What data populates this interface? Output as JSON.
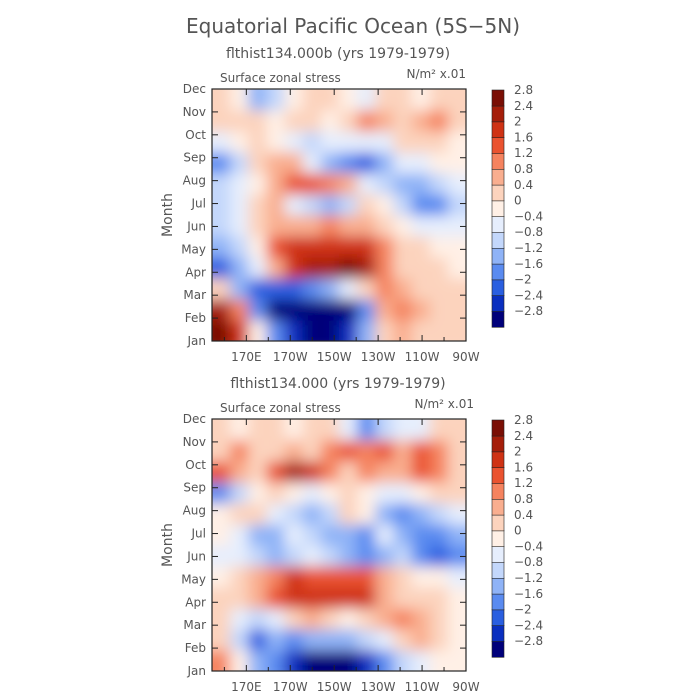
{
  "figure": {
    "title": "Equatorial Pacific Ocean (5S−5N)"
  },
  "colorbar": {
    "colors": [
      "#00007a",
      "#0a2fbf",
      "#2a5fe0",
      "#5a8bf0",
      "#8fb3f7",
      "#c3d7fb",
      "#e6eefd",
      "#fff0e6",
      "#fcd3bd",
      "#f9ae8f",
      "#f5835f",
      "#ea5330",
      "#cf3214",
      "#a51e0a",
      "#7a0f05"
    ],
    "labels": [
      "-2.8",
      "-2.4",
      "-2",
      "-1.6",
      "-1.2",
      "-0.8",
      "-0.4",
      "0",
      "0.4",
      "0.8",
      "1.2",
      "1.6",
      "2",
      "2.4",
      "2.8"
    ]
  },
  "chart_data": [
    {
      "type": "heatmap",
      "title": "flthist134.000b (yrs 1979-1979)",
      "variable": "Surface zonal stress",
      "units": "N/m² x.01",
      "ylabel": "Month",
      "xlabel": "",
      "xticks": [
        "170E",
        "170W",
        "150W",
        "130W",
        "110W",
        "90W"
      ],
      "yticks": [
        "Jan",
        "Feb",
        "Mar",
        "Apr",
        "May",
        "Jun",
        "Jul",
        "Aug",
        "Sep",
        "Oct",
        "Nov",
        "Dec"
      ],
      "value_range": [
        -3.2,
        3.2
      ],
      "grid_cols": 14,
      "grid_rows": 12,
      "values": [
        [
          3.0,
          2.2,
          0.0,
          -1.5,
          -2.4,
          -3.0,
          -3.0,
          -2.4,
          -1.2,
          0.4,
          0.8,
          0.6,
          0.4,
          0.4
        ],
        [
          2.6,
          1.2,
          -1.8,
          -3.2,
          -3.2,
          -3.2,
          -3.0,
          -2.8,
          -1.6,
          0.8,
          1.2,
          0.8,
          0.4,
          0.4
        ],
        [
          0.4,
          -1.2,
          -2.2,
          -2.2,
          -2.0,
          -1.6,
          -1.2,
          -0.4,
          0.4,
          1.2,
          1.0,
          0.6,
          0.4,
          0.4
        ],
        [
          -2.0,
          -1.4,
          -0.4,
          1.0,
          2.0,
          2.4,
          2.6,
          2.8,
          2.6,
          1.4,
          0.4,
          0.4,
          0.4,
          0.2
        ],
        [
          -1.4,
          -0.8,
          0.0,
          1.6,
          2.2,
          2.2,
          2.0,
          2.2,
          2.2,
          1.2,
          0.4,
          0.4,
          0.2,
          0.0
        ],
        [
          -1.0,
          -0.6,
          0.4,
          1.0,
          0.8,
          1.0,
          1.2,
          0.8,
          0.8,
          0.4,
          0.0,
          -0.6,
          -0.6,
          -0.4
        ],
        [
          -0.8,
          -0.4,
          0.4,
          0.8,
          -0.4,
          -1.0,
          -1.2,
          -0.8,
          0.4,
          0.0,
          -0.8,
          -1.6,
          -1.6,
          -0.8
        ],
        [
          -0.8,
          -0.4,
          0.0,
          0.8,
          1.6,
          1.8,
          1.4,
          0.8,
          -0.4,
          -1.0,
          -1.2,
          -1.2,
          -0.8,
          -0.4
        ],
        [
          -1.6,
          -1.0,
          0.4,
          0.8,
          0.8,
          -0.4,
          -1.2,
          -1.8,
          -2.0,
          -1.4,
          -0.6,
          -0.4,
          0.0,
          0.0
        ],
        [
          -0.4,
          0.0,
          0.4,
          0.0,
          -0.4,
          -0.8,
          -0.6,
          -0.4,
          -0.6,
          -0.4,
          0.4,
          0.4,
          0.4,
          0.2
        ],
        [
          0.4,
          0.4,
          0.4,
          0.0,
          0.4,
          0.4,
          0.0,
          0.4,
          1.2,
          0.8,
          0.4,
          0.8,
          1.2,
          0.4
        ],
        [
          0.4,
          0.0,
          -1.2,
          -0.8,
          0.0,
          0.4,
          0.4,
          0.0,
          -0.4,
          0.4,
          0.4,
          0.0,
          0.4,
          0.4
        ]
      ]
    },
    {
      "type": "heatmap",
      "title": "flthist134.000 (yrs 1979-1979)",
      "variable": "Surface zonal stress",
      "units": "N/m² x.01",
      "ylabel": "Month",
      "xlabel": "",
      "xticks": [
        "170E",
        "170W",
        "150W",
        "130W",
        "110W",
        "90W"
      ],
      "yticks": [
        "Jan",
        "Feb",
        "Mar",
        "Apr",
        "May",
        "Jun",
        "Jul",
        "Aug",
        "Sep",
        "Oct",
        "Nov",
        "Dec"
      ],
      "value_range": [
        -3.2,
        3.2
      ],
      "grid_cols": 14,
      "grid_rows": 12,
      "values": [
        [
          1.2,
          0.0,
          -1.2,
          -1.6,
          -2.6,
          -2.8,
          -3.0,
          -2.8,
          -2.4,
          -1.6,
          -0.8,
          -0.4,
          0.0,
          0.0
        ],
        [
          0.4,
          -0.8,
          -2.0,
          -1.2,
          -1.6,
          -1.4,
          -1.2,
          -1.2,
          -0.8,
          -0.4,
          0.4,
          0.8,
          0.4,
          0.0
        ],
        [
          0.4,
          -0.4,
          -1.0,
          -0.4,
          0.4,
          0.8,
          0.4,
          0.0,
          0.4,
          0.8,
          1.2,
          1.0,
          0.4,
          0.0
        ],
        [
          0.4,
          0.4,
          0.8,
          1.6,
          2.0,
          2.2,
          2.0,
          2.2,
          2.0,
          0.8,
          0.4,
          0.4,
          0.4,
          0.0
        ],
        [
          0.0,
          0.4,
          0.8,
          1.4,
          2.0,
          1.8,
          1.6,
          1.8,
          1.8,
          0.8,
          0.4,
          0.0,
          0.0,
          -0.4
        ],
        [
          -0.4,
          -0.4,
          -0.8,
          -1.2,
          -0.8,
          -0.4,
          -0.8,
          -1.2,
          -1.6,
          -1.2,
          -0.8,
          -1.6,
          -2.0,
          -1.6
        ],
        [
          0.0,
          -0.4,
          -1.2,
          -1.2,
          -0.4,
          -0.8,
          -1.2,
          -1.2,
          -1.6,
          -0.4,
          -1.2,
          -1.6,
          -1.6,
          -1.2
        ],
        [
          0.0,
          0.4,
          0.4,
          -0.4,
          -0.8,
          -1.2,
          -0.8,
          0.4,
          0.0,
          -1.2,
          -1.6,
          -1.2,
          -0.8,
          -0.4
        ],
        [
          -1.6,
          -0.8,
          0.0,
          0.4,
          0.0,
          -0.4,
          0.0,
          0.4,
          0.0,
          -0.4,
          -0.4,
          0.0,
          0.4,
          0.4
        ],
        [
          1.6,
          0.8,
          0.4,
          1.6,
          2.4,
          2.2,
          1.2,
          0.4,
          1.2,
          0.8,
          0.8,
          1.6,
          1.2,
          0.4
        ],
        [
          0.4,
          1.2,
          0.4,
          0.4,
          0.8,
          0.4,
          1.2,
          1.6,
          1.4,
          1.6,
          1.0,
          1.6,
          1.2,
          0.4
        ],
        [
          0.4,
          0.0,
          0.4,
          0.4,
          0.0,
          0.4,
          0.4,
          -0.4,
          -1.6,
          -0.8,
          -0.4,
          -0.4,
          0.4,
          0.4
        ]
      ]
    }
  ]
}
